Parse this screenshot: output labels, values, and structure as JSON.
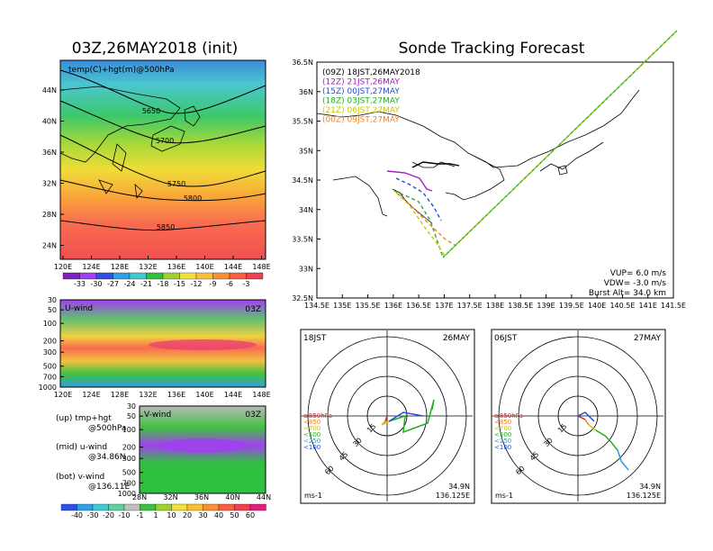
{
  "left_title": "03Z,26MAY2018 (init)",
  "right_title": "Sonde Tracking Forecast",
  "map_panel": {
    "label": "temp(C)+hgt(m)@500hPa",
    "lon_ticks": [
      "120E",
      "124E",
      "128E",
      "132E",
      "136E",
      "140E",
      "144E",
      "148E"
    ],
    "lat_ticks": [
      "44N",
      "40N",
      "36N",
      "32N",
      "28N",
      "24N"
    ],
    "contour_labels": [
      "5650",
      "5700",
      "5750",
      "5800",
      "5850"
    ],
    "colorbar_ticks": [
      "-33",
      "-30",
      "-27",
      "-24",
      "-21",
      "-18",
      "-15",
      "-12",
      "-9",
      "-6",
      "-3"
    ]
  },
  "uwind_panel": {
    "label": "U-wind",
    "time": "03Z",
    "p_ticks": [
      "30",
      "50",
      "100",
      "200",
      "300",
      "500",
      "700",
      "1000"
    ],
    "lon_ticks": [
      "120E",
      "124E",
      "128E",
      "132E",
      "136E",
      "140E",
      "144E",
      "148E"
    ]
  },
  "vwind_panel": {
    "label": "V-wind",
    "time": "03Z",
    "p_ticks": [
      "30",
      "50",
      "100",
      "200",
      "300",
      "500",
      "700",
      "1000"
    ],
    "lat_ticks": [
      "28N",
      "32N",
      "36N",
      "40N",
      "44N"
    ],
    "colorbar_ticks": [
      "-40",
      "-30",
      "-20",
      "-10",
      "-1",
      "1",
      "10",
      "20",
      "30",
      "40",
      "50",
      "60"
    ]
  },
  "legend_text": {
    "up_1": "(up) tmp+hgt",
    "up_2": "@500hPa",
    "mid_1": "(mid) u-wind",
    "mid_2": "@34.86N",
    "bot_1": "(bot) v-wind",
    "bot_2": "@136.11E"
  },
  "track_panel": {
    "xticks": [
      "134.5E",
      "135E",
      "135.5E",
      "136E",
      "136.5E",
      "137E",
      "137.5E",
      "138E",
      "138.5E",
      "139E",
      "139.5E",
      "140E",
      "140.5E",
      "141E",
      "141.5E"
    ],
    "yticks": [
      "36.5N",
      "36N",
      "35.5N",
      "35N",
      "34.5N",
      "34N",
      "33.5N",
      "33N",
      "32.5N"
    ],
    "legend": [
      {
        "text": "(09Z)  18JST,26MAY2018",
        "color": "#000000"
      },
      {
        "text": "(12Z)  21JST,26MAY",
        "color": "#a020c0"
      },
      {
        "text": "(15Z)  00JST,27MAY",
        "color": "#2050e0"
      },
      {
        "text": "(18Z)  03JST,27MAY",
        "color": "#20b020"
      },
      {
        "text": "(21Z)  06JST,27MAY",
        "color": "#c8c800"
      },
      {
        "text": "(00Z)  09JST,27MAY",
        "color": "#f08020"
      }
    ],
    "vup": "VUP=  6.0  m/s",
    "vdw": "VDW= -3.0  m/s",
    "burst": "Burst Alt=  34.0  km"
  },
  "hodo_left": {
    "time": "18JST",
    "date": "26MAY",
    "rings": [
      "15",
      "30",
      "45",
      "60"
    ],
    "levels": [
      {
        "text": "≥850hPa",
        "color": "#e02020"
      },
      {
        "text": "<850",
        "color": "#f08020"
      },
      {
        "text": "<700",
        "color": "#c8c800"
      },
      {
        "text": "<500",
        "color": "#20b020"
      },
      {
        "text": "<250",
        "color": "#20a0e0"
      },
      {
        "text": "<100",
        "color": "#2050e0"
      }
    ],
    "unit": "ms-1",
    "lat": "34.9N",
    "lon": "136.125E"
  },
  "hodo_right": {
    "time": "06JST",
    "date": "27MAY",
    "rings": [
      "15",
      "30",
      "45",
      "60"
    ],
    "unit": "ms-1",
    "lat": "34.9N",
    "lon": "136.125E"
  }
}
